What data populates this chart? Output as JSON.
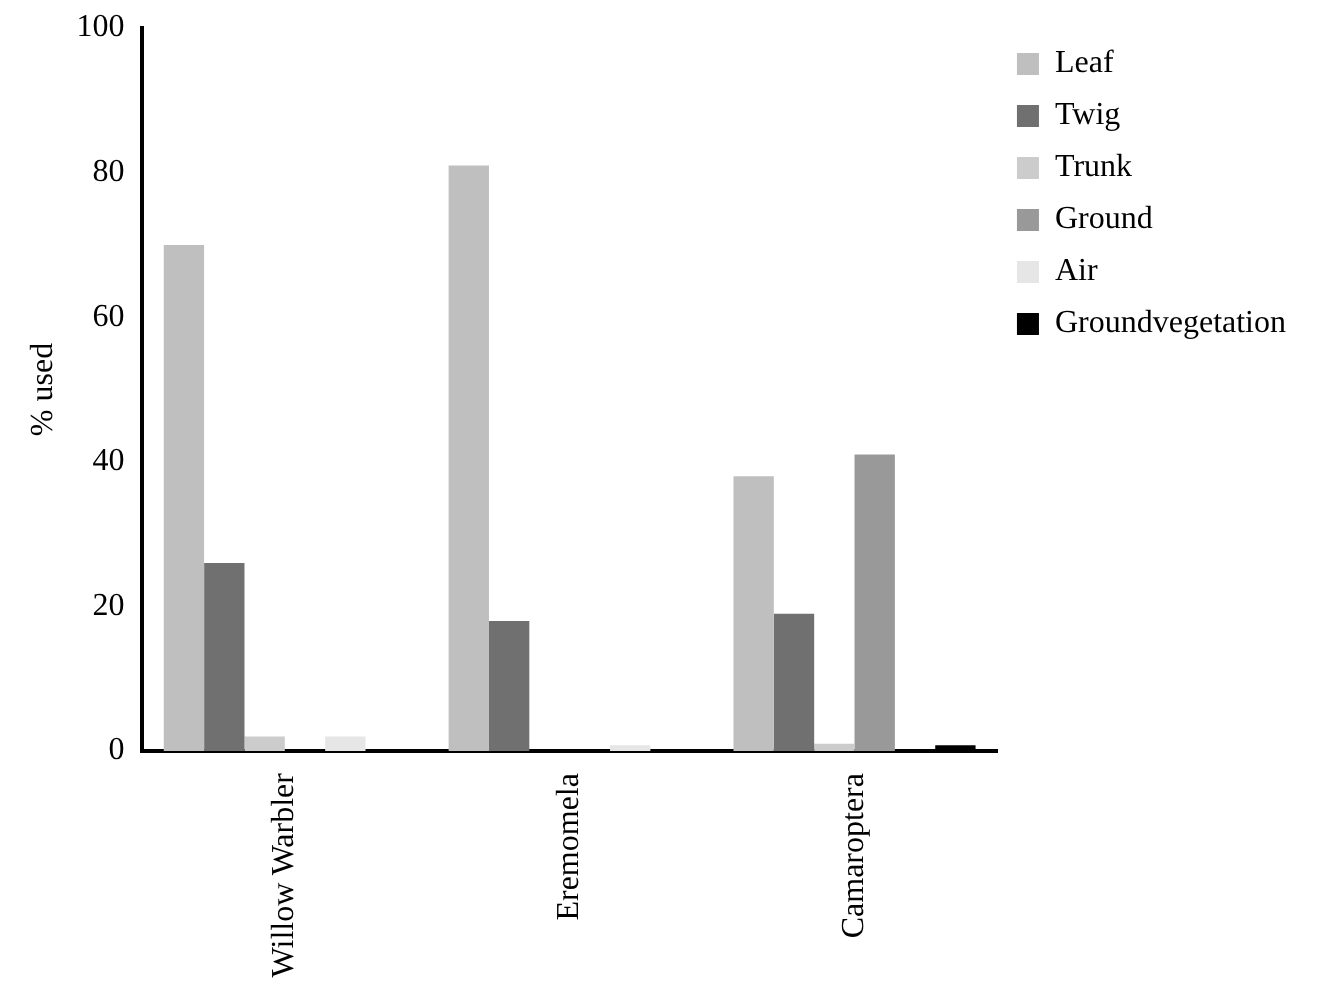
{
  "chart_data": {
    "type": "bar",
    "ylabel": "% used",
    "categories": [
      "Willow Warbler",
      "Eremomela",
      "Camaroptera"
    ],
    "series": [
      {
        "name": "Leaf",
        "color": "#bfbfbf",
        "values": [
          70,
          81,
          38
        ]
      },
      {
        "name": "Twig",
        "color": "#707070",
        "values": [
          26,
          18,
          19
        ]
      },
      {
        "name": "Trunk",
        "color": "#cccccc",
        "values": [
          2,
          0,
          1
        ]
      },
      {
        "name": "Ground",
        "color": "#999999",
        "values": [
          0,
          0,
          41
        ]
      },
      {
        "name": "Air",
        "color": "#e6e6e6",
        "values": [
          2,
          0.8,
          0
        ]
      },
      {
        "name": "Groundvegetation",
        "color": "#000000",
        "values": [
          0,
          0,
          0.8
        ]
      }
    ],
    "ylim": [
      0,
      100
    ],
    "yticks": [
      0,
      20,
      40,
      60,
      80,
      100
    ],
    "grid": false,
    "legend": "top right"
  }
}
